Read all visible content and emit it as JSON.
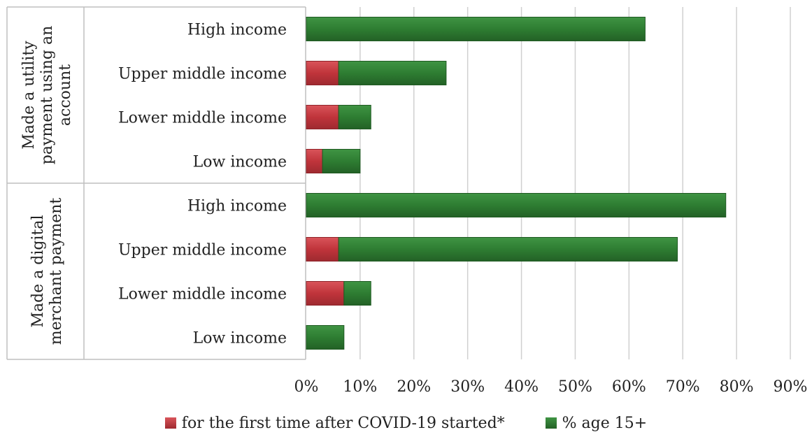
{
  "chart_data": {
    "type": "bar",
    "orientation": "horizontal",
    "stacked": true,
    "groups": [
      {
        "label_lines": [
          "Made a utility",
          "payment using an",
          "account"
        ],
        "categories": [
          "High income",
          "Upper middle income",
          "Lower middle income",
          "Low income"
        ],
        "first_time": [
          0,
          6,
          6,
          3
        ],
        "age15": [
          63,
          20,
          6,
          7
        ]
      },
      {
        "label_lines": [
          "Made a digital",
          "merchant payment"
        ],
        "categories": [
          "High income",
          "Upper middle income",
          "Lower middle income",
          "Low income"
        ],
        "first_time": [
          0,
          6,
          7,
          0
        ],
        "age15": [
          78,
          63,
          5,
          7
        ]
      }
    ],
    "series": [
      {
        "name": "for the first time after COVID-19 started*",
        "color": "#c0343b"
      },
      {
        "name": "% age 15+",
        "color": "#2e7d32"
      }
    ],
    "xlim": [
      0,
      90
    ],
    "xticks": [
      "0%",
      "10%",
      "20%",
      "30%",
      "40%",
      "50%",
      "60%",
      "70%",
      "80%",
      "90%"
    ],
    "grid": true,
    "legend_position": "bottom"
  }
}
